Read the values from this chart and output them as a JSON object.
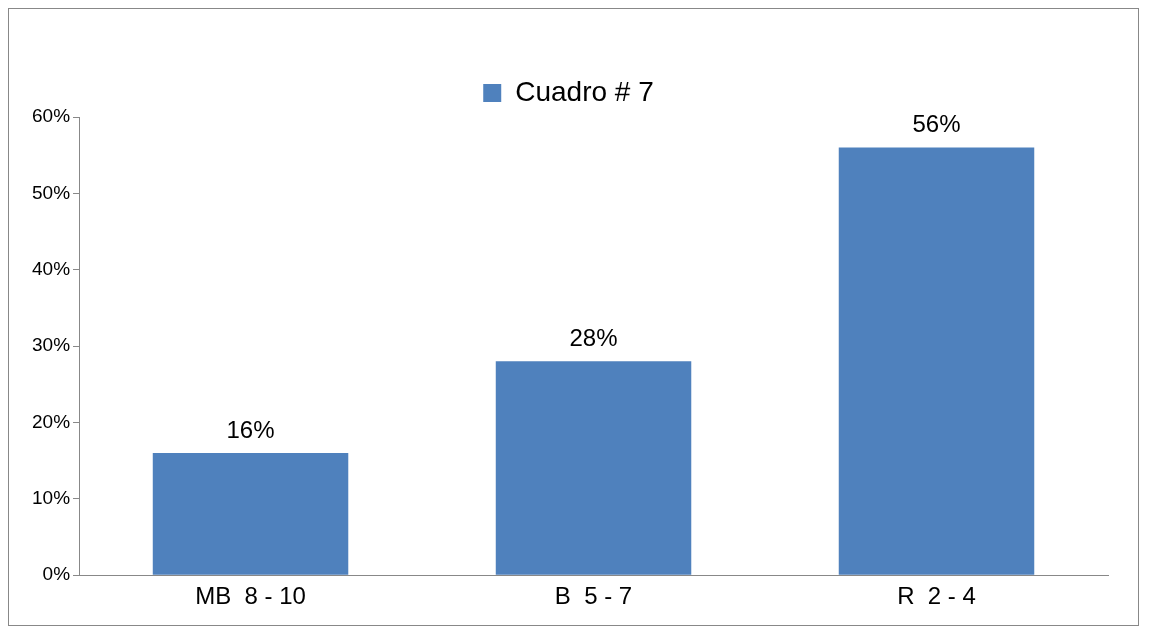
{
  "chart_data": {
    "type": "bar",
    "categories": [
      "MB  8 - 10",
      "B  5 - 7",
      "R  2 - 4"
    ],
    "series": [
      {
        "name": "Cuadro # 7",
        "color": "#4f81bd",
        "values": [
          16,
          28,
          56
        ],
        "value_labels": [
          "16%",
          "28%",
          "56%"
        ]
      }
    ],
    "ylim": [
      0,
      60
    ],
    "yticks": [
      {
        "value": 0,
        "label": "0%"
      },
      {
        "value": 10,
        "label": "10%"
      },
      {
        "value": 20,
        "label": "20%"
      },
      {
        "value": 30,
        "label": "30%"
      },
      {
        "value": 40,
        "label": "40%"
      },
      {
        "value": 50,
        "label": "50%"
      },
      {
        "value": 60,
        "label": "60%"
      }
    ],
    "grid": false,
    "legend": "top"
  }
}
